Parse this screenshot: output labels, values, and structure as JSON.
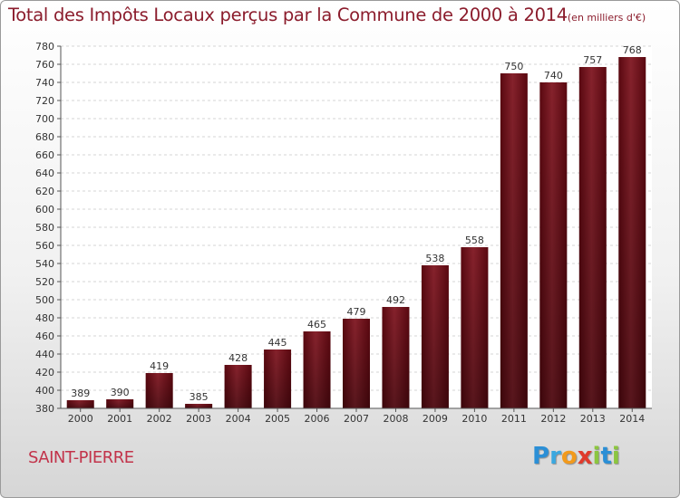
{
  "chart_data": {
    "type": "bar",
    "title": "Total des Impôts Locaux perçus par la Commune de 2000 à 2014",
    "unit": "(en milliers d'€)",
    "categories": [
      "2000",
      "2001",
      "2002",
      "2003",
      "2004",
      "2005",
      "2006",
      "2007",
      "2008",
      "2009",
      "2010",
      "2011",
      "2012",
      "2013",
      "2014"
    ],
    "values": [
      389,
      390,
      419,
      385,
      428,
      445,
      465,
      479,
      492,
      538,
      558,
      750,
      740,
      757,
      768
    ],
    "ylim": [
      380,
      780
    ],
    "ytick_step": 20,
    "grid": true,
    "bar_color": "#7a1a22",
    "bar_color_dark": "#4a0006",
    "xlabel": "",
    "ylabel": ""
  },
  "commune": "SAINT-PIERRE",
  "logo": {
    "letters": [
      "P",
      "r",
      "o",
      "x",
      "i",
      "t",
      "i"
    ]
  }
}
